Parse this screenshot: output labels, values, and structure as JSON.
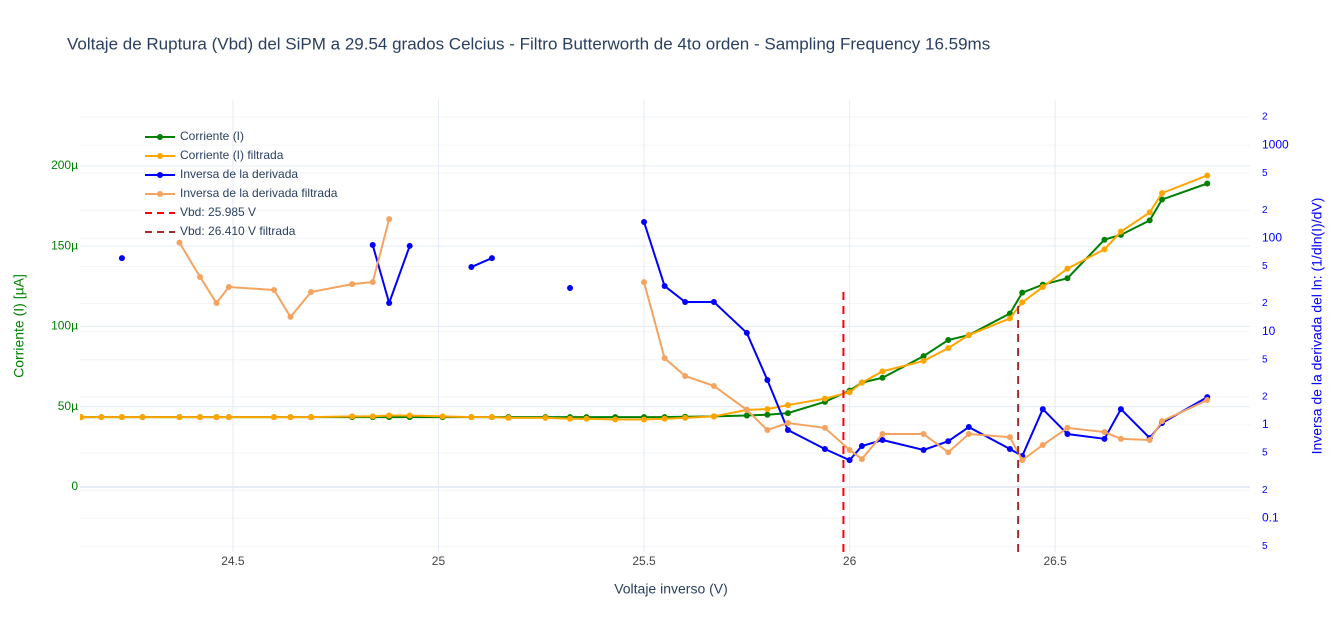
{
  "chart_data": {
    "type": "line",
    "title": "Voltaje de Ruptura (Vbd) del SiPM a 29.54 grados Celcius - Filtro Butterworth de 4to orden - Sampling Frequency 16.59ms",
    "x_label": "Voltaje inverso (V)",
    "y_label": "Corriente (I) [µA]",
    "y2_label": "Inversa de la derivada del ln: (1/dln(I)/dV)",
    "y_color": "green",
    "y2_color": "blue",
    "x": [
      24.13,
      24.18,
      24.23,
      24.28,
      24.37,
      24.42,
      24.46,
      24.49,
      24.6,
      24.64,
      24.69,
      24.79,
      24.84,
      24.88,
      24.93,
      25.01,
      25.08,
      25.13,
      25.17,
      25.26,
      25.32,
      25.36,
      25.43,
      25.5,
      25.55,
      25.6,
      25.67,
      25.75,
      25.8,
      25.85,
      25.94,
      26.0,
      26.03,
      26.08,
      26.18,
      26.24,
      26.29,
      26.39,
      26.42,
      26.47,
      26.53,
      26.62,
      26.66,
      26.73,
      26.76,
      26.87
    ],
    "series": [
      {
        "name": "Corriente (I)",
        "color": "green",
        "axis": "y",
        "values": [
          43.5,
          43.5,
          43.5,
          43.5,
          43.5,
          43.5,
          43.5,
          43.5,
          43.5,
          43.5,
          43.5,
          43.5,
          43.5,
          43.5,
          43.5,
          43.5,
          43.5,
          43.5,
          43.5,
          43.5,
          43.5,
          43.5,
          43.5,
          43.5,
          43.5,
          43.7,
          44,
          44.5,
          45,
          46,
          53,
          60,
          65,
          68,
          81.5,
          91.5,
          94.6,
          108,
          121,
          126,
          130,
          154,
          157,
          166,
          179,
          189
        ]
      },
      {
        "name": "Corriente (I) filtrada",
        "color": "orange",
        "axis": "y",
        "values": [
          43.5,
          43.5,
          43.5,
          43.5,
          43.5,
          43.5,
          43.5,
          43.5,
          43.5,
          43.5,
          43.5,
          44,
          44,
          44.5,
          44.5,
          44,
          43.5,
          43.5,
          43,
          43,
          42.5,
          42.5,
          42,
          42,
          42.5,
          43,
          44,
          48,
          48.5,
          51,
          55,
          59,
          65,
          72,
          78.5,
          86.5,
          94.6,
          105,
          115,
          124.5,
          136,
          148,
          159,
          171,
          183,
          194
        ]
      },
      {
        "name": "Inversa de la derivada",
        "color": "blue",
        "axis": "y2",
        "values": [
          null,
          null,
          61.5,
          null,
          null,
          null,
          null,
          null,
          null,
          null,
          null,
          null,
          85,
          20.3,
          83,
          null,
          49.3,
          61.5,
          null,
          null,
          29.4,
          null,
          null,
          150,
          30.9,
          20.8,
          20.8,
          9.7,
          3.03,
          0.884,
          0.553,
          0.42,
          0.595,
          0.69,
          0.54,
          0.67,
          0.95,
          0.553,
          0.465,
          1.48,
          0.8,
          0.71,
          1.48,
          0.725,
          1.05,
          1.99
        ]
      },
      {
        "name": "Inversa de la derivada filtrada",
        "color": "sandybrown",
        "axis": "y2",
        "values": [
          null,
          null,
          null,
          null,
          90,
          38.6,
          20.3,
          30.1,
          28,
          14.4,
          26.6,
          32.3,
          34,
          161,
          null,
          null,
          null,
          null,
          null,
          null,
          null,
          null,
          null,
          34,
          5.2,
          3.35,
          2.62,
          1.45,
          0.884,
          1.05,
          0.93,
          0.54,
          0.43,
          0.8,
          0.8,
          0.51,
          0.8,
          0.74,
          0.42,
          0.61,
          0.93,
          0.84,
          0.71,
          0.69,
          1.1,
          1.85
        ]
      }
    ],
    "vlines": [
      {
        "name": "Vbd: 25.985 V",
        "x": 25.985,
        "y_top": 124.5,
        "color": "red"
      },
      {
        "name": "Vbd: 26.410 V filtrada",
        "x": 26.41,
        "y_top": 115,
        "color": "brown"
      }
    ],
    "xlim": [
      24.128,
      26.974
    ],
    "xticks": [
      24.5,
      25,
      25.5,
      26,
      26.5
    ],
    "ylim": [
      -40.5,
      241
    ],
    "yticks": [
      0,
      {
        "value": 50,
        "label": "50µ"
      },
      {
        "value": 100,
        "label": "100µ"
      },
      {
        "value": 150,
        "label": "150µ"
      },
      {
        "value": 200,
        "label": "200µ"
      }
    ],
    "y2lim": [
      0.0435,
      3043
    ],
    "y2_log": true,
    "y2ticks": [
      {
        "value": 0.05,
        "label": "5"
      },
      0.1,
      {
        "value": 0.2,
        "label": "2"
      },
      {
        "value": 0.5,
        "label": "5"
      },
      1,
      {
        "value": 2,
        "label": "2"
      },
      {
        "value": 5,
        "label": "5"
      },
      10,
      {
        "value": 20,
        "label": "2"
      },
      {
        "value": 50,
        "label": "5"
      },
      100,
      {
        "value": 200,
        "label": "2"
      },
      {
        "value": 500,
        "label": "5"
      },
      1000,
      {
        "value": 2000,
        "label": "2"
      }
    ],
    "grid": true,
    "legend": "top-left"
  }
}
